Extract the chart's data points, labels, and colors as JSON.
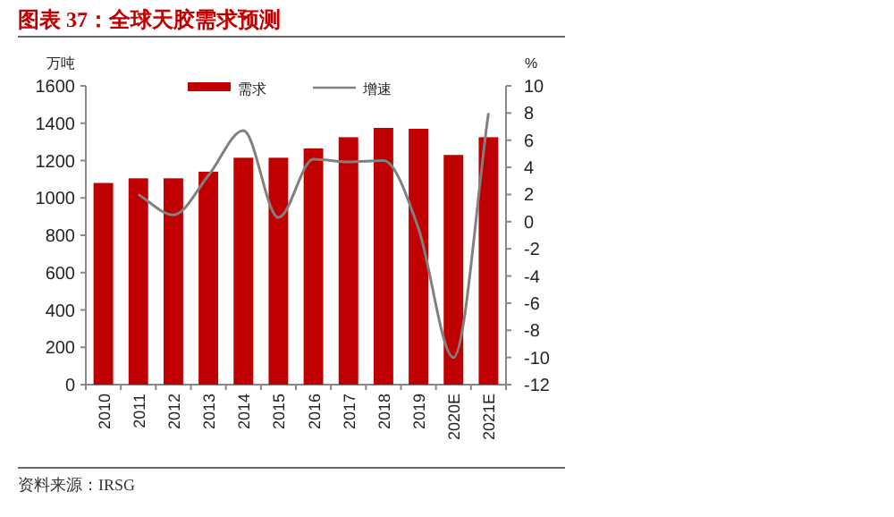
{
  "chart_data": {
    "type": "bar",
    "title": "图表 37：全球天胶需求预测",
    "ylabel": "万吨",
    "y2label": "%",
    "categories": [
      "2010",
      "2011",
      "2012",
      "2013",
      "2014",
      "2015",
      "2016",
      "2017",
      "2018",
      "2019",
      "2020E",
      "2021E"
    ],
    "series": [
      {
        "name": "需求",
        "color": "#c00000",
        "values": [
          1080,
          1105,
          1105,
          1140,
          1215,
          1215,
          1265,
          1325,
          1375,
          1370,
          1230,
          1325
        ]
      },
      {
        "name": "增速",
        "type": "line",
        "axis": "y2",
        "color": "#808080",
        "values": [
          null,
          2,
          0.5,
          3.4,
          6.7,
          0.3,
          4.6,
          4.4,
          4.5,
          -0.5,
          -10,
          8
        ]
      }
    ],
    "ylim": [
      0,
      1600
    ],
    "yticks": [
      0,
      200,
      400,
      600,
      800,
      1000,
      1200,
      1400,
      1600
    ],
    "y2lim": [
      -12,
      10
    ],
    "y2ticks": [
      -12,
      -10,
      -8,
      -6,
      -4,
      -2,
      0,
      2,
      4,
      6,
      8,
      10
    ],
    "legend": "top",
    "grid": false,
    "annotations": [
      "资料来源：IRSG"
    ]
  }
}
